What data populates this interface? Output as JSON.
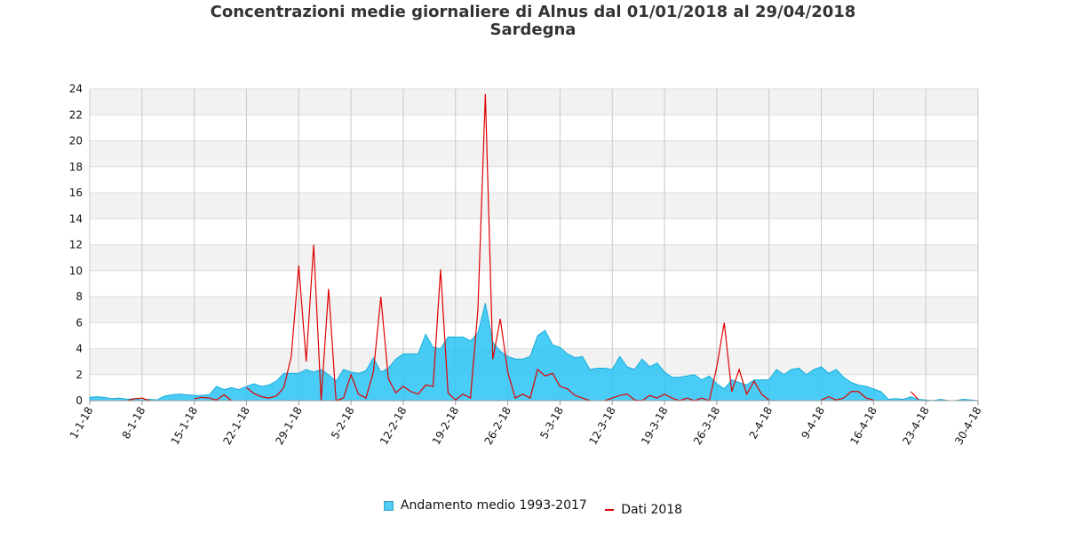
{
  "title_line1": "Concentrazioni medie giornaliere di Alnus dal 01/01/2018 al 29/04/2018",
  "title_line2": "Sardegna",
  "chart_data": {
    "type": "area",
    "ylim": [
      0,
      24
    ],
    "ylabel_ticks": [
      "0",
      "2",
      "4",
      "6",
      "8",
      "10",
      "12",
      "14",
      "16",
      "18",
      "20",
      "22",
      "24"
    ],
    "x_tick_labels": [
      "1-1-18",
      "8-1-18",
      "15-1-18",
      "22-1-18",
      "29-1-18",
      "5-2-18",
      "12-2-18",
      "19-2-18",
      "26-2-18",
      "5-3-18",
      "12-3-18",
      "19-3-18",
      "26-3-18",
      "2-4-18",
      "9-4-18",
      "16-4-18",
      "23-4-18",
      "30-4-18"
    ],
    "x_days": 119,
    "grid": true,
    "legend_position": "bottom",
    "series": [
      {
        "name": "Andamento medio 1993-2017",
        "kind": "area",
        "color": "#29c3f4",
        "values": [
          0.25,
          0.3,
          0.25,
          0.15,
          0.2,
          0.1,
          0.15,
          0.05,
          0.1,
          0.05,
          0.35,
          0.45,
          0.5,
          0.45,
          0.4,
          0.4,
          0.45,
          1.1,
          0.85,
          1.0,
          0.85,
          1.1,
          1.3,
          1.1,
          1.2,
          1.5,
          2.1,
          2.1,
          2.1,
          2.4,
          2.2,
          2.4,
          2.0,
          1.5,
          2.4,
          2.2,
          2.1,
          2.3,
          3.3,
          2.2,
          2.5,
          3.2,
          3.6,
          3.6,
          3.6,
          5.1,
          4.1,
          4.0,
          4.9,
          4.9,
          4.9,
          4.6,
          5.2,
          7.5,
          4.5,
          3.8,
          3.4,
          3.2,
          3.2,
          3.4,
          5.0,
          5.4,
          4.3,
          4.1,
          3.6,
          3.3,
          3.4,
          2.4,
          2.5,
          2.5,
          2.4,
          3.4,
          2.6,
          2.4,
          3.2,
          2.6,
          2.9,
          2.2,
          1.8,
          1.8,
          1.9,
          2.0,
          1.6,
          1.9,
          1.3,
          0.9,
          1.6,
          1.4,
          1.2,
          1.6,
          1.6,
          1.6,
          2.4,
          2.0,
          2.4,
          2.5,
          2.0,
          2.4,
          2.6,
          2.1,
          2.4,
          1.8,
          1.4,
          1.2,
          1.1,
          0.9,
          0.7,
          0.1,
          0.15,
          0.1,
          0.3,
          0.1,
          0.05,
          0.0,
          0.1,
          0.0,
          0.0,
          0.1,
          0.05,
          0.0
        ]
      },
      {
        "name": "Dati 2018",
        "kind": "line",
        "color": "#e00000",
        "values": [
          null,
          null,
          null,
          null,
          null,
          0.0,
          0.15,
          0.2,
          0.0,
          null,
          null,
          null,
          null,
          null,
          0.15,
          0.25,
          0.2,
          0.05,
          0.45,
          0.0,
          null,
          1.0,
          0.55,
          0.3,
          0.2,
          0.35,
          1.0,
          3.4,
          10.4,
          3.0,
          12.0,
          0.0,
          8.6,
          0.0,
          0.2,
          2.0,
          0.5,
          0.2,
          2.2,
          8.0,
          1.7,
          0.6,
          1.1,
          0.7,
          0.5,
          1.2,
          1.1,
          10.1,
          0.6,
          0.05,
          0.5,
          0.2,
          7.0,
          23.6,
          3.2,
          6.3,
          2.2,
          0.2,
          0.5,
          0.2,
          2.4,
          1.9,
          2.1,
          1.1,
          0.9,
          0.4,
          0.2,
          0.0,
          null,
          0.0,
          0.2,
          0.4,
          0.5,
          0.05,
          0.0,
          0.4,
          0.2,
          0.5,
          0.2,
          0.0,
          0.2,
          0.0,
          0.2,
          0.0,
          2.6,
          6.0,
          0.7,
          2.4,
          0.5,
          1.5,
          0.5,
          0.05,
          null,
          null,
          null,
          null,
          null,
          null,
          0.05,
          0.3,
          0.05,
          0.2,
          0.7,
          0.7,
          0.2,
          0.05,
          null,
          null,
          null,
          null,
          0.7,
          0.1,
          null,
          null,
          null,
          null,
          null,
          null,
          null,
          null
        ]
      }
    ]
  }
}
